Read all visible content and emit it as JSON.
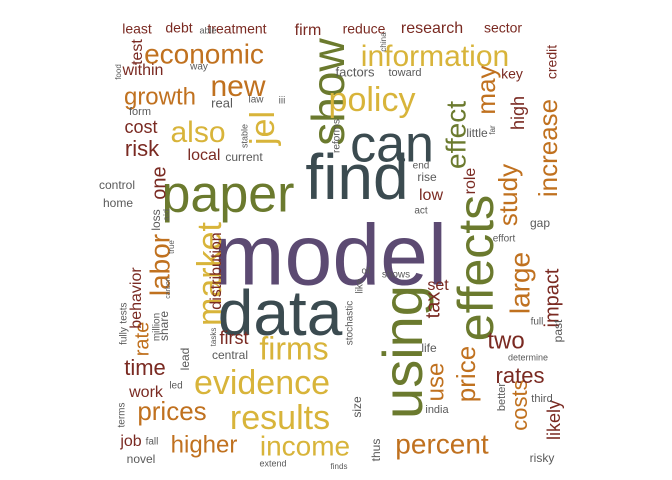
{
  "palette": {
    "purple": "#5c4a72",
    "slate": "#3b4b50",
    "olive": "#6b7a2e",
    "gold": "#d8b43a",
    "orange": "#c0711f",
    "maroon": "#7a2a22",
    "grey": "#5a5a5a"
  },
  "words": [
    {
      "text": "model",
      "color": "purple"
    },
    {
      "text": "data",
      "color": "slate"
    },
    {
      "text": "find",
      "color": "slate"
    },
    {
      "text": "using",
      "color": "olive"
    },
    {
      "text": "effects",
      "color": "olive"
    },
    {
      "text": "paper",
      "color": "olive"
    },
    {
      "text": "can",
      "color": "slate"
    },
    {
      "text": "show",
      "color": "olive"
    },
    {
      "text": "market",
      "color": "gold"
    },
    {
      "text": "evidence",
      "color": "gold"
    },
    {
      "text": "results",
      "color": "gold"
    },
    {
      "text": "information",
      "color": "gold"
    },
    {
      "text": "policy",
      "color": "gold"
    },
    {
      "text": "firms",
      "color": "gold"
    },
    {
      "text": "income",
      "color": "gold"
    },
    {
      "text": "percent",
      "color": "orange"
    },
    {
      "text": "economic",
      "color": "orange"
    },
    {
      "text": "new",
      "color": "orange"
    },
    {
      "text": "also",
      "color": "gold"
    },
    {
      "text": "jel",
      "color": "gold"
    },
    {
      "text": "effect",
      "color": "olive"
    },
    {
      "text": "may",
      "color": "orange"
    },
    {
      "text": "increase",
      "color": "orange"
    },
    {
      "text": "study",
      "color": "orange"
    },
    {
      "text": "large",
      "color": "orange"
    },
    {
      "text": "labor",
      "color": "orange"
    },
    {
      "text": "prices",
      "color": "orange"
    },
    {
      "text": "higher",
      "color": "orange"
    },
    {
      "text": "price",
      "color": "orange"
    },
    {
      "text": "use",
      "color": "orange"
    },
    {
      "text": "growth",
      "color": "orange"
    },
    {
      "text": "costs",
      "color": "orange"
    },
    {
      "text": "rates",
      "color": "maroon"
    },
    {
      "text": "two",
      "color": "maroon"
    },
    {
      "text": "time",
      "color": "maroon"
    },
    {
      "text": "risk",
      "color": "maroon"
    },
    {
      "text": "impact",
      "color": "maroon"
    },
    {
      "text": "tax",
      "color": "maroon"
    },
    {
      "text": "high",
      "color": "maroon"
    },
    {
      "text": "rate",
      "color": "orange"
    },
    {
      "text": "one",
      "color": "maroon"
    },
    {
      "text": "cost",
      "color": "maroon"
    },
    {
      "text": "first",
      "color": "maroon"
    },
    {
      "text": "likely",
      "color": "maroon"
    },
    {
      "text": "distribution",
      "color": "maroon"
    },
    {
      "text": "role",
      "color": "maroon"
    },
    {
      "text": "work",
      "color": "maroon"
    },
    {
      "text": "behavior",
      "color": "maroon"
    },
    {
      "text": "within",
      "color": "maroon"
    },
    {
      "text": "test",
      "color": "maroon"
    },
    {
      "text": "firm",
      "color": "maroon"
    },
    {
      "text": "research",
      "color": "maroon"
    },
    {
      "text": "local",
      "color": "maroon"
    },
    {
      "text": "job",
      "color": "maroon"
    },
    {
      "text": "low",
      "color": "maroon"
    },
    {
      "text": "set",
      "color": "maroon"
    },
    {
      "text": "credit",
      "color": "maroon"
    },
    {
      "text": "key",
      "color": "maroon"
    },
    {
      "text": "treatment",
      "color": "maroon"
    },
    {
      "text": "debt",
      "color": "maroon"
    },
    {
      "text": "least",
      "color": "maroon"
    },
    {
      "text": "reduce",
      "color": "maroon"
    },
    {
      "text": "sector",
      "color": "maroon"
    },
    {
      "text": "factors",
      "color": "grey"
    },
    {
      "text": "toward",
      "color": "grey"
    },
    {
      "text": "real",
      "color": "grey"
    },
    {
      "text": "law",
      "color": "grey"
    },
    {
      "text": "iii",
      "color": "grey"
    },
    {
      "text": "form",
      "color": "grey"
    },
    {
      "text": "way",
      "color": "grey"
    },
    {
      "text": "able",
      "color": "grey"
    },
    {
      "text": "china",
      "color": "grey"
    },
    {
      "text": "food",
      "color": "grey"
    },
    {
      "text": "stable",
      "color": "grey"
    },
    {
      "text": "reforms",
      "color": "grey"
    },
    {
      "text": "current",
      "color": "grey"
    },
    {
      "text": "control",
      "color": "grey"
    },
    {
      "text": "home",
      "color": "grey"
    },
    {
      "text": "loss",
      "color": "grey"
    },
    {
      "text": "aid",
      "color": "grey"
    },
    {
      "text": "true",
      "color": "grey"
    },
    {
      "text": "carbon",
      "color": "grey"
    },
    {
      "text": "million",
      "color": "grey"
    },
    {
      "text": "share",
      "color": "grey"
    },
    {
      "text": "tasks",
      "color": "grey"
    },
    {
      "text": "lead",
      "color": "grey"
    },
    {
      "text": "central",
      "color": "grey"
    },
    {
      "text": "led",
      "color": "grey"
    },
    {
      "text": "terms",
      "color": "grey"
    },
    {
      "text": "fully",
      "color": "grey"
    },
    {
      "text": "tests",
      "color": "grey"
    },
    {
      "text": "oil",
      "color": "grey"
    },
    {
      "text": "shows",
      "color": "grey"
    },
    {
      "text": "stochastic",
      "color": "grey"
    },
    {
      "text": "like",
      "color": "grey"
    },
    {
      "text": "size",
      "color": "grey"
    },
    {
      "text": "thus",
      "color": "grey"
    },
    {
      "text": "finds",
      "color": "grey"
    },
    {
      "text": "extend",
      "color": "grey"
    },
    {
      "text": "fall",
      "color": "grey"
    },
    {
      "text": "novel",
      "color": "grey"
    },
    {
      "text": "life",
      "color": "grey"
    },
    {
      "text": "india",
      "color": "grey"
    },
    {
      "text": "little",
      "color": "grey"
    },
    {
      "text": "far",
      "color": "grey"
    },
    {
      "text": "rise",
      "color": "grey"
    },
    {
      "text": "end",
      "color": "grey"
    },
    {
      "text": "act",
      "color": "grey"
    },
    {
      "text": "effort",
      "color": "grey"
    },
    {
      "text": "gap",
      "color": "grey"
    },
    {
      "text": "full",
      "color": "grey"
    },
    {
      "text": "past",
      "color": "grey"
    },
    {
      "text": "determine",
      "color": "grey"
    },
    {
      "text": "better",
      "color": "grey"
    },
    {
      "text": "third",
      "color": "grey"
    },
    {
      "text": "risky",
      "color": "grey"
    }
  ]
}
